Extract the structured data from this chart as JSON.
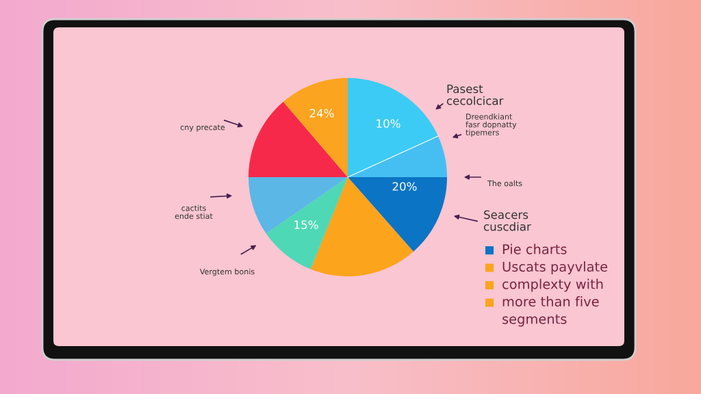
{
  "chart_data": {
    "type": "pie",
    "categories": [
      null,
      null,
      null,
      null,
      null,
      null,
      null,
      null
    ],
    "values": [
      18.2,
      6.8,
      13.5,
      17.6,
      9.3,
      9.6,
      13.75,
      11.25
    ],
    "colors": [
      "#3ccbf4",
      "#45bff2",
      "#0b74c4",
      "#fca41c",
      "#4fd8b5",
      "#5ab7e6",
      "#f7294a",
      "#fba41f"
    ],
    "annotations": [
      "10%",
      "20%",
      "15%",
      "24%",
      "Pasest\ncecolcicar",
      "Dreendkiant\nfasr dopnatty\ntipemers",
      "The oalts",
      "Seacers\ncuscdiar",
      "cny precate",
      "cactits\nende stiat",
      "Vergtem bonis",
      "Pie charts",
      "Uscats payvlate",
      "complexty with",
      "more than five",
      "segments"
    ],
    "legend": false
  }
}
